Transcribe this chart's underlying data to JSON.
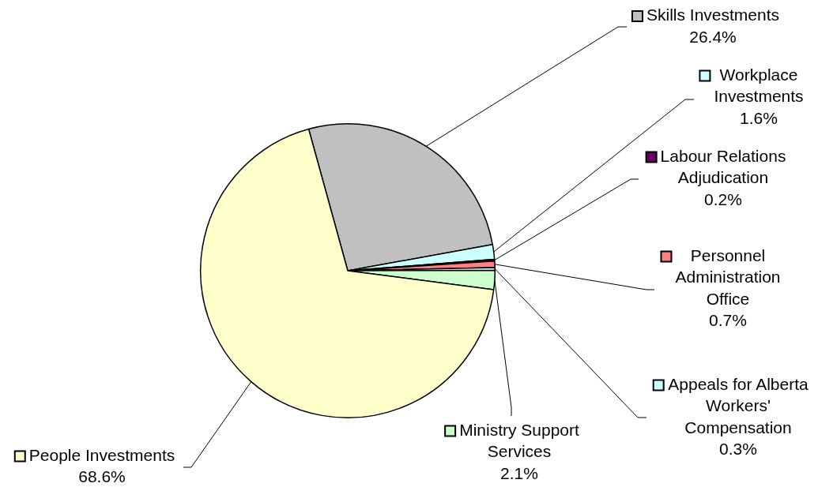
{
  "chart_data": {
    "type": "pie",
    "categories": [
      "Skills Investments",
      "Workplace Investments",
      "Labour Relations Adjudication",
      "Personnel Administration Office",
      "Appeals for Alberta Workers' Compensation",
      "Ministry Support Services",
      "People Investments"
    ],
    "values": [
      26.4,
      1.6,
      0.2,
      0.7,
      0.3,
      2.1,
      68.6
    ],
    "colors": [
      "#c0c0c0",
      "#ccffff",
      "#660066",
      "#ff8080",
      "#ccffff",
      "#ccffcc",
      "#ffffcc"
    ],
    "value_labels": [
      "26.4%",
      "1.6%",
      "0.2%",
      "0.7%",
      "0.3%",
      "2.1%",
      "68.6%"
    ],
    "legend": "right"
  }
}
